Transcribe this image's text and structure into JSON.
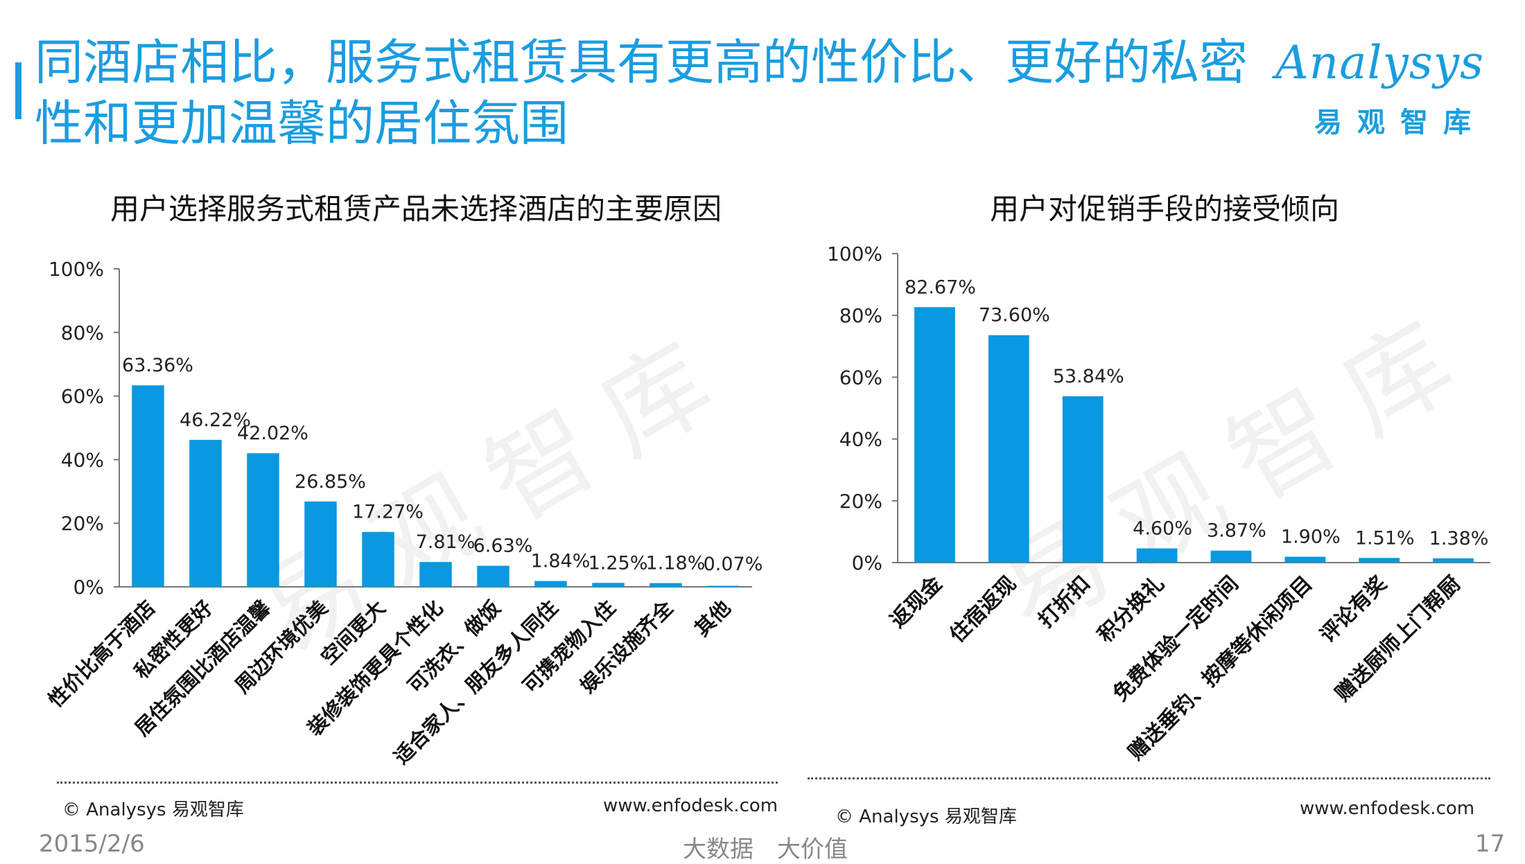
{
  "slide": {
    "title": "同酒店相比，服务式租赁具有更高的性价比、更好的私密性和更加温馨的居住氛围",
    "logo_word": "Analysys",
    "logo_cn": "易观智库",
    "watermark": "易观智库",
    "date": "2015/2/6",
    "slogan": "大数据　大价值",
    "page_number": "17",
    "colors": {
      "accent": "#1a9de0",
      "bar": "#0a98e0"
    }
  },
  "footers": [
    {
      "source": "© Analysys 易观智库",
      "url": "www.enfodesk.com"
    },
    {
      "source": "© Analysys 易观智库",
      "url": "www.enfodesk.com"
    }
  ],
  "chart_data": [
    {
      "type": "bar",
      "title": "用户选择服务式租赁产品未选择酒店的主要原因",
      "categories": [
        "性价比高于酒店",
        "私密性更好",
        "居住氛围比酒店温馨",
        "周边环境优美",
        "空间更大",
        "装修装饰更具个性化",
        "可洗衣、做饭",
        "适合家人、朋友多人同住",
        "可携宠物入住",
        "娱乐设施齐全",
        "其他"
      ],
      "values": [
        63.36,
        46.22,
        42.02,
        26.85,
        17.27,
        7.81,
        6.63,
        1.84,
        1.25,
        1.18,
        0.07
      ],
      "data_labels": [
        "63.36%",
        "46.22%",
        "42.02%",
        "26.85%",
        "17.27%",
        "7.81%",
        "6.63%",
        "1.84%",
        "1.25%",
        "1.18%",
        "0.07%"
      ],
      "yticks": [
        "0%",
        "20%",
        "40%",
        "60%",
        "80%",
        "100%"
      ],
      "ylim": [
        0,
        100
      ],
      "grid": false,
      "legend": "none"
    },
    {
      "type": "bar",
      "title": "用户对促销手段的接受倾向",
      "categories": [
        "返现金",
        "住宿返现",
        "打折扣",
        "积分换礼",
        "免费体验一定时间",
        "赠送垂钓、按摩等休闲项目",
        "评论有奖",
        "赠送厨师上门帮厨"
      ],
      "values": [
        82.67,
        73.6,
        53.84,
        4.6,
        3.87,
        1.9,
        1.51,
        1.38
      ],
      "data_labels": [
        "82.67%",
        "73.60%",
        "53.84%",
        "4.60%",
        "3.87%",
        "1.90%",
        "1.51%",
        "1.38%"
      ],
      "yticks": [
        "0%",
        "20%",
        "40%",
        "60%",
        "80%",
        "100%"
      ],
      "ylim": [
        0,
        100
      ],
      "grid": false,
      "legend": "none"
    }
  ]
}
